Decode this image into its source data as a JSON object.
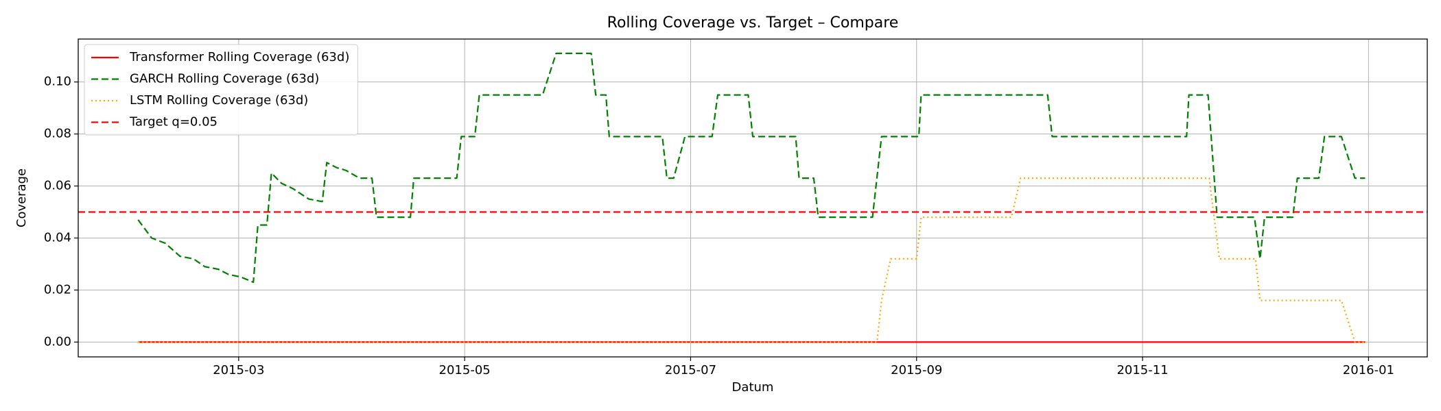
{
  "chart_data": {
    "type": "line",
    "title": "Rolling Coverage vs. Target – Compare",
    "xlabel": "Datum",
    "ylabel": "Coverage",
    "grid": true,
    "legend": "upper left",
    "xlim": [
      1.58,
      13.52
    ],
    "ylim": [
      -0.0057,
      0.1165
    ],
    "xticks": [
      {
        "value": 3,
        "label": "2015-03"
      },
      {
        "value": 5,
        "label": "2015-05"
      },
      {
        "value": 7,
        "label": "2015-07"
      },
      {
        "value": 9,
        "label": "2015-09"
      },
      {
        "value": 11,
        "label": "2015-11"
      },
      {
        "value": 13,
        "label": "2016-01"
      }
    ],
    "yticks": [
      {
        "value": 0,
        "label": "0.00"
      },
      {
        "value": 0.02,
        "label": "0.02"
      },
      {
        "value": 0.04,
        "label": "0.04"
      },
      {
        "value": 0.06,
        "label": "0.06"
      },
      {
        "value": 0.08,
        "label": "0.08"
      },
      {
        "value": 0.1,
        "label": "0.10"
      }
    ],
    "series": [
      {
        "name": "Transformer Rolling Coverage (63d)",
        "color": "#ff0000",
        "style": "solid",
        "x": [
          2.11,
          12.97
        ],
        "values": [
          0,
          0
        ]
      },
      {
        "name": "GARCH Rolling Coverage (63d)",
        "color": "#008000",
        "style": "dashed",
        "x": [
          2.11,
          2.23,
          2.35,
          2.48,
          2.6,
          2.7,
          2.82,
          2.91,
          3.02,
          3.13,
          3.17,
          3.25,
          3.29,
          3.38,
          3.48,
          3.62,
          3.74,
          3.78,
          3.87,
          3.95,
          4.07,
          4.18,
          4.22,
          4.52,
          4.55,
          4.93,
          4.97,
          5.09,
          5.13,
          5.69,
          5.81,
          6.12,
          6.16,
          6.25,
          6.28,
          6.75,
          6.79,
          6.85,
          6.95,
          7.19,
          7.24,
          7.51,
          7.55,
          7.93,
          7.96,
          8.09,
          8.13,
          8.61,
          8.69,
          9.02,
          9.04,
          10.16,
          10.2,
          11.39,
          11.41,
          11.58,
          11.66,
          11.99,
          12.04,
          12.08,
          12.33,
          12.37,
          12.56,
          12.61,
          12.76,
          12.88,
          12.97
        ],
        "values": [
          0.047,
          0.04,
          0.038,
          0.033,
          0.032,
          0.029,
          0.028,
          0.026,
          0.025,
          0.023,
          0.045,
          0.045,
          0.065,
          0.061,
          0.059,
          0.055,
          0.054,
          0.069,
          0.067,
          0.066,
          0.063,
          0.063,
          0.048,
          0.048,
          0.063,
          0.063,
          0.079,
          0.079,
          0.095,
          0.095,
          0.111,
          0.111,
          0.095,
          0.095,
          0.079,
          0.079,
          0.063,
          0.063,
          0.079,
          0.079,
          0.095,
          0.095,
          0.079,
          0.079,
          0.063,
          0.063,
          0.048,
          0.048,
          0.079,
          0.079,
          0.095,
          0.095,
          0.079,
          0.079,
          0.095,
          0.095,
          0.048,
          0.048,
          0.032,
          0.048,
          0.048,
          0.063,
          0.063,
          0.079,
          0.079,
          0.063,
          0.063
        ]
      },
      {
        "name": "LSTM Rolling Coverage (63d)",
        "color": "#ffa500",
        "style": "dotted",
        "x": [
          2.11,
          8.65,
          8.69,
          8.77,
          9.0,
          9.04,
          9.84,
          9.92,
          11.59,
          11.68,
          12.0,
          12.04,
          12.76,
          12.88,
          12.97
        ],
        "values": [
          0,
          0,
          0.016,
          0.032,
          0.032,
          0.048,
          0.048,
          0.063,
          0.063,
          0.032,
          0.032,
          0.016,
          0.016,
          0,
          0
        ]
      }
    ],
    "target": {
      "name": "Target q=0.05",
      "color": "#ff0000",
      "style": "dashed",
      "value": 0.05
    }
  }
}
